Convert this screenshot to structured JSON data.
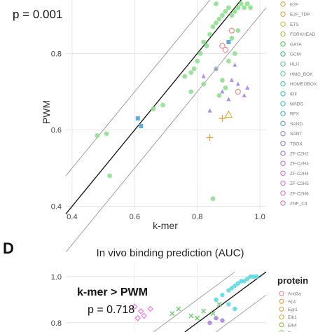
{
  "chart_data": [
    {
      "type": "scatter",
      "title": "",
      "xlabel": "k-mer",
      "ylabel": "PWM",
      "annotation": "p =  0.001",
      "xlim": [
        0.38,
        1.02
      ],
      "ylim": [
        0.39,
        0.94
      ],
      "xticks": [
        "0.4",
        "0.6",
        "0.8",
        "1.0"
      ],
      "yticks": [
        "0.4",
        "0.6",
        "0.8"
      ],
      "grid": true,
      "legend_position": "right",
      "legend": [
        "E2F",
        "E2F_TDP",
        "ETS",
        "FORKHEAD",
        "GATA",
        "GCM",
        "HLH",
        "HMG_BOX",
        "HOMEOBOX",
        "IRF",
        "MADS",
        "RFX",
        "SAND",
        "SANT",
        "TBOX",
        "ZF-C2H2",
        "ZF-C2H3",
        "ZF-C2H4",
        "ZF-C2H5",
        "ZF-C2H6",
        "ZNF_C4"
      ],
      "series": [
        {
          "name": "HLH",
          "color": "#8fe08f",
          "x": [
            0.48,
            0.51,
            0.52,
            0.66,
            0.69,
            0.76,
            0.78,
            0.79,
            0.8,
            0.81,
            0.82,
            0.83,
            0.84,
            0.85,
            0.86,
            0.87,
            0.88,
            0.89,
            0.9,
            0.91,
            0.92,
            0.93,
            0.94,
            0.95,
            0.96,
            0.97,
            0.78,
            0.82,
            0.86,
            0.88,
            0.9,
            0.92,
            0.85,
            0.87,
            0.89,
            0.91,
            0.93,
            0.86
          ],
          "y": [
            0.585,
            0.59,
            0.48,
            0.655,
            0.665,
            0.74,
            0.75,
            0.76,
            0.78,
            0.8,
            0.83,
            0.82,
            0.85,
            0.87,
            0.88,
            0.89,
            0.9,
            0.91,
            0.92,
            0.9,
            0.91,
            0.92,
            0.93,
            0.92,
            0.93,
            0.92,
            0.7,
            0.72,
            0.76,
            0.73,
            0.78,
            0.8,
            0.42,
            0.69,
            0.71,
            0.84,
            0.86,
            0.93
          ]
        },
        {
          "name": "ZF-C2H2",
          "color": "#b08cf0",
          "x": [
            0.82,
            0.86,
            0.88,
            0.9,
            0.91,
            0.92,
            0.93,
            0.95,
            0.96,
            0.84
          ],
          "y": [
            0.74,
            0.76,
            0.7,
            0.68,
            0.73,
            0.77,
            0.72,
            0.69,
            0.71,
            0.65
          ]
        },
        {
          "name": "IRF",
          "color": "#5aaee0",
          "x": [
            0.61,
            0.62,
            0.9
          ],
          "y": [
            0.63,
            0.61,
            0.83
          ]
        },
        {
          "name": "ETS",
          "color": "#f08080",
          "x": [
            0.88,
            0.89,
            0.91,
            0.93
          ],
          "y": [
            0.82,
            0.81,
            0.86,
            0.7
          ]
        },
        {
          "name": "E2F",
          "color": "#e8a040",
          "x": [
            0.84,
            0.88
          ],
          "y": [
            0.58,
            0.63
          ]
        },
        {
          "name": "FORKHEAD",
          "color": "#e8b040",
          "x": [
            0.9
          ],
          "y": [
            0.64
          ]
        }
      ]
    },
    {
      "type": "scatter",
      "panel_label": "D",
      "title": "In vivo binding prediction (AUC)",
      "annotation_lines": [
        "k-mer > PWM",
        "p = 0.718"
      ],
      "yticks": [
        "1.0",
        "0.8"
      ],
      "legend_title": "protein",
      "legend": [
        "Arid3a",
        "Ap1",
        "Egr1",
        "Elk1",
        "Elk4",
        "Evrx"
      ],
      "series": [
        {
          "name": "Cyan",
          "color": "#55d8e0",
          "x": [
            0.86,
            0.88,
            0.9,
            0.91,
            0.92,
            0.93,
            0.94,
            0.95,
            0.96,
            0.97,
            0.98,
            0.99,
            0.9,
            0.92
          ],
          "y": [
            0.9,
            0.92,
            0.94,
            0.95,
            0.96,
            0.97,
            0.98,
            0.98,
            0.99,
            1.0,
            1.0,
            1.0,
            0.88,
            0.86
          ]
        },
        {
          "name": "Pink",
          "color": "#f070e0",
          "x": [
            0.6,
            0.62,
            0.63,
            0.65,
            0.61
          ],
          "y": [
            0.87,
            0.85,
            0.83,
            0.86,
            0.82
          ]
        },
        {
          "name": "Green",
          "color": "#70d070",
          "x": [
            0.72,
            0.74,
            0.78,
            0.8,
            0.82,
            0.85,
            0.87
          ],
          "y": [
            0.84,
            0.86,
            0.83,
            0.82,
            0.85,
            0.84,
            0.88
          ]
        },
        {
          "name": "Purple",
          "color": "#a080e0",
          "x": [
            0.84,
            0.86,
            0.88
          ],
          "y": [
            0.8,
            0.82,
            0.81
          ]
        }
      ]
    }
  ]
}
